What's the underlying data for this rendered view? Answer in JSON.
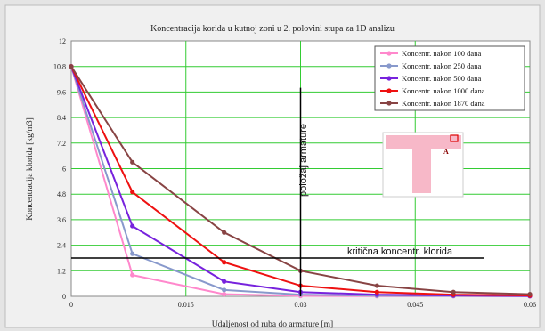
{
  "chart_data": {
    "type": "line",
    "title": "Koncentracija korida u kutnoj zoni u 2. polovini stupa za 1D analizu",
    "xlabel": "Udaljenost od ruba do armature [m]",
    "ylabel": "Koncentracija klorida [kg/m3]",
    "xlim": [
      0,
      0.06
    ],
    "ylim": [
      0,
      12
    ],
    "x_ticks": [
      "0",
      "0.015",
      "0.03",
      "0.045",
      "0.06"
    ],
    "y_ticks": [
      "0",
      "1.2",
      "2.4",
      "3.6",
      "4.8",
      "6",
      "7.2",
      "8.4",
      "9.6",
      "10.8",
      "12"
    ],
    "grid": true,
    "legend_position": "top-right",
    "x": [
      0,
      0.008,
      0.02,
      0.03,
      0.04,
      0.05,
      0.06
    ],
    "series": [
      {
        "name": "Koncentr. nakon 100 dana",
        "color": "#ff88cc",
        "values": [
          10.8,
          1.0,
          0.1,
          0.02,
          0.01,
          0.01,
          0.0
        ]
      },
      {
        "name": "Koncentr. nakon 250 dana",
        "color": "#8899cc",
        "values": [
          10.8,
          2.0,
          0.3,
          0.08,
          0.03,
          0.02,
          0.01
        ]
      },
      {
        "name": "Koncentr. nakon 500 dana",
        "color": "#7722dd",
        "values": [
          10.8,
          3.3,
          0.7,
          0.2,
          0.08,
          0.04,
          0.02
        ]
      },
      {
        "name": "Koncentr. nakon 1000 dana",
        "color": "#ee1111",
        "values": [
          10.8,
          4.9,
          1.6,
          0.5,
          0.2,
          0.08,
          0.04
        ]
      },
      {
        "name": "Koncentr. nakon 1870 dana",
        "color": "#884444",
        "values": [
          10.8,
          6.3,
          3.0,
          1.2,
          0.5,
          0.2,
          0.1
        ]
      }
    ],
    "annotations": {
      "rebar_position_label": "položaj armature",
      "rebar_position_x": 0.03,
      "critical_label": "kritična koncentr. klorida",
      "critical_y": 1.8,
      "inset_marker_label": "A"
    }
  }
}
